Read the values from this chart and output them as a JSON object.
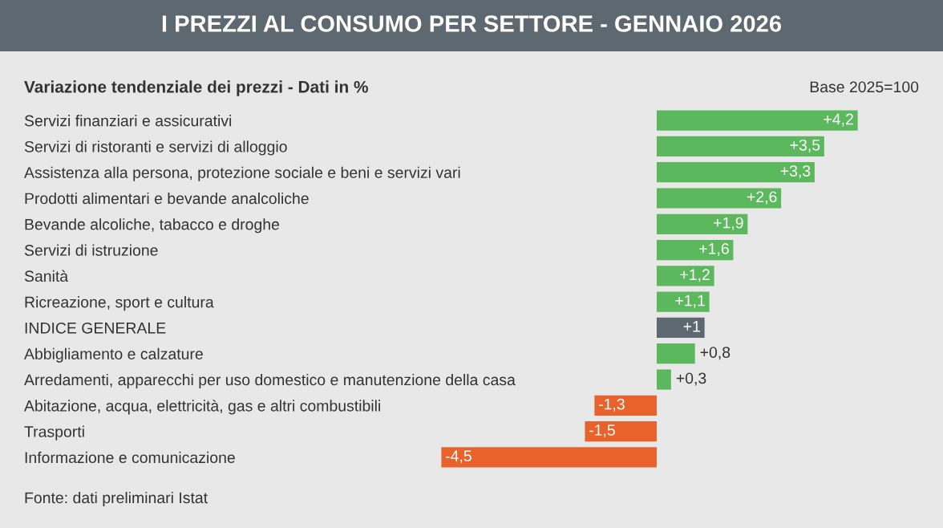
{
  "chart_data": {
    "type": "bar",
    "orientation": "horizontal",
    "title": "I PREZZI AL CONSUMO PER SETTORE - GENNAIO 2026",
    "subtitle": "Variazione tendenziale dei prezzi - Dati in %",
    "annotations": [
      "Base 2025=100",
      "Fonte: dati preliminari Istat"
    ],
    "categories": [
      "Servizi finanziari e assicurativi",
      "Servizi di ristoranti e servizi di alloggio",
      "Assistenza alla persona, protezione sociale e beni e servizi vari",
      "Prodotti alimentari e bevande analcoliche",
      "Bevande alcoliche, tabacco e droghe",
      "Servizi di istruzione",
      "Sanità",
      "Ricreazione, sport e cultura",
      "INDICE GENERALE",
      "Abbigliamento e calzature",
      "Arredamenti, apparecchi per uso domestico e manutenzione della casa",
      "Abitazione, acqua, elettricità, gas e altri combustibili",
      "Trasporti",
      "Informazione e comunicazione"
    ],
    "values": [
      4.2,
      3.5,
      3.3,
      2.6,
      1.9,
      1.6,
      1.2,
      1.1,
      1,
      0.8,
      0.3,
      -1.3,
      -1.5,
      -4.5
    ],
    "value_labels": [
      "+4,2",
      "+3,5",
      "+3,3",
      "+2,6",
      "+1,9",
      "+1,6",
      "+1,2",
      "+1,1",
      "+1",
      "+0,8",
      "+0,3",
      "-1,3",
      "-1,5",
      "-4,5"
    ],
    "colors": [
      "#5cb85c",
      "#5cb85c",
      "#5cb85c",
      "#5cb85c",
      "#5cb85c",
      "#5cb85c",
      "#5cb85c",
      "#5cb85c",
      "#5d6870",
      "#5cb85c",
      "#5cb85c",
      "#e8622c",
      "#e8622c",
      "#e8622c"
    ],
    "grid": false,
    "legend": false
  }
}
